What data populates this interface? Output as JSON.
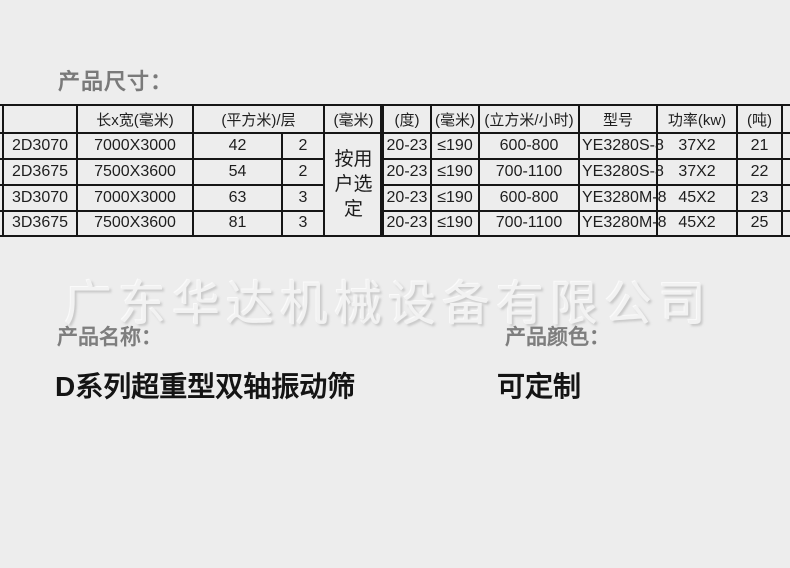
{
  "page": {
    "background_color": "#ededed",
    "line_color": "#161616"
  },
  "section_dimensions": {
    "label": "产品尺寸："
  },
  "table": {
    "headers": [
      "",
      "长x宽(毫米)",
      "(平方米)/层",
      "(毫米)",
      "(度)",
      "(毫米)",
      "(立方米/小时)",
      "型号",
      "功率(kw)",
      "(吨)"
    ],
    "merged_cell_text": "按用户选定",
    "rows": [
      [
        "2D3070",
        "7000X3000",
        "42",
        "2",
        "20-23",
        "≤190",
        "600-800",
        "YE3280S-8",
        "37X2",
        "21"
      ],
      [
        "2D3675",
        "7500X3600",
        "54",
        "2",
        "20-23",
        "≤190",
        "700-1100",
        "YE3280S-8",
        "37X2",
        "22"
      ],
      [
        "3D3070",
        "7000X3000",
        "63",
        "3",
        "20-23",
        "≤190",
        "600-800",
        "YE3280M-8",
        "45X2",
        "23"
      ],
      [
        "3D3675",
        "7500X3600",
        "81",
        "3",
        "20-23",
        "≤190",
        "700-1100",
        "YE3280M-8",
        "45X2",
        "25"
      ]
    ]
  },
  "watermark": {
    "text": "广东华达机械设备有限公司"
  },
  "product_name": {
    "label": "产品名称：",
    "value": "D系列超重型双轴振动筛"
  },
  "product_color": {
    "label": "产品颜色：",
    "value": "可定制"
  }
}
